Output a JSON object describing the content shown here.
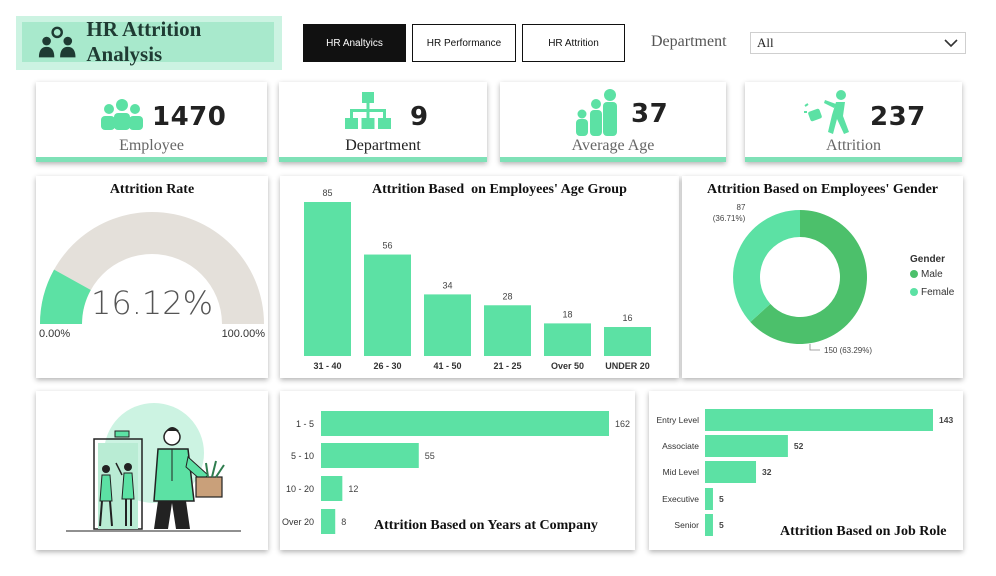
{
  "header": {
    "title": "HR Attrition Analysis",
    "nav": [
      {
        "label": "HR Analtyics",
        "active": true
      },
      {
        "label": "HR Performance",
        "active": false
      },
      {
        "label": "HR Attrition",
        "active": false
      }
    ],
    "filter_label": "Department",
    "filter_value": "All"
  },
  "kpis": {
    "employee": {
      "value": "1470",
      "label": "Employee"
    },
    "department": {
      "value": "9",
      "label": "Department"
    },
    "age": {
      "value": "37",
      "label": "Average Age"
    },
    "attrition": {
      "value": "237",
      "label": "Attrition"
    }
  },
  "colors": {
    "accent": "#5ce1a4",
    "male": "#4cc06b",
    "gauge_bg": "#e4e0da"
  },
  "chart_data": [
    {
      "type": "gauge",
      "title": "Attrition Rate",
      "value": 16.12,
      "value_label": "16.12%",
      "min_label": "0.00%",
      "max_label": "100.00%",
      "range": [
        0,
        100
      ]
    },
    {
      "type": "bar",
      "title": "Attrition Based  on Employees' Age Group",
      "categories": [
        "31 - 40",
        "26 - 30",
        "41 - 50",
        "21 - 25",
        "Over 50",
        "UNDER 20"
      ],
      "values": [
        85,
        56,
        34,
        28,
        18,
        16
      ],
      "ylim": [
        0,
        85
      ]
    },
    {
      "type": "pie",
      "title": "Attrition Based on Employees' Gender",
      "legend_title": "Gender",
      "legend_position": "right",
      "slices": [
        {
          "name": "Male",
          "value": 150,
          "label": "150 (63.29%)"
        },
        {
          "name": "Female",
          "value": 87,
          "label": "87\n(36.71%)"
        }
      ]
    },
    {
      "type": "bar",
      "orientation": "horizontal",
      "title": "Attrition Based on Years at Company",
      "categories": [
        "1 - 5",
        "5 - 10",
        "10 - 20",
        "Over 20"
      ],
      "values": [
        162,
        55,
        12,
        8
      ]
    },
    {
      "type": "bar",
      "orientation": "horizontal",
      "title": "Attrition Based on Job Role",
      "categories": [
        "Entry Level",
        "Associate",
        "Mid Level",
        "Executive",
        "Senior"
      ],
      "values": [
        143,
        52,
        32,
        5,
        5
      ]
    }
  ]
}
